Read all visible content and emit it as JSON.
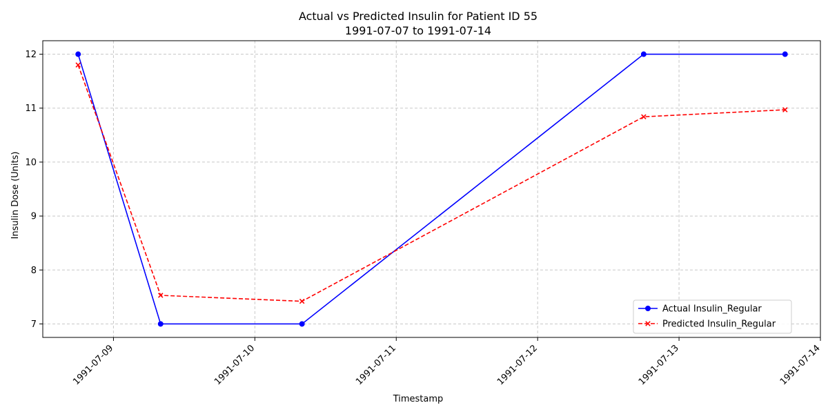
{
  "chart_data": {
    "type": "line",
    "title": "Actual vs Predicted Insulin for Patient ID 55",
    "subtitle": "1991-07-07 to 1991-07-14",
    "xlabel": "Timestamp",
    "ylabel": "Insulin Dose (Units)",
    "xlim": [
      "1991-07-08 12:00",
      "1991-07-14 00:00"
    ],
    "ylim": [
      6.75,
      12.25
    ],
    "x_ticks": [
      "1991-07-09",
      "1991-07-10",
      "1991-07-11",
      "1991-07-12",
      "1991-07-13",
      "1991-07-14"
    ],
    "y_ticks": [
      7,
      8,
      9,
      10,
      11,
      12
    ],
    "grid": true,
    "legend_position": "bottom-right",
    "series": [
      {
        "name": "Actual Insulin_Regular",
        "color": "#0000ff",
        "line_style": "solid",
        "marker": "circle",
        "points": [
          {
            "x": "1991-07-08 18:00",
            "y": 12
          },
          {
            "x": "1991-07-09 08:00",
            "y": 7
          },
          {
            "x": "1991-07-10 08:00",
            "y": 7
          },
          {
            "x": "1991-07-12 18:00",
            "y": 12
          },
          {
            "x": "1991-07-13 18:00",
            "y": 12
          }
        ]
      },
      {
        "name": "Predicted Insulin_Regular",
        "color": "#ff0000",
        "line_style": "dashed",
        "marker": "x",
        "points": [
          {
            "x": "1991-07-08 18:00",
            "y": 11.8
          },
          {
            "x": "1991-07-09 08:00",
            "y": 7.53
          },
          {
            "x": "1991-07-10 08:00",
            "y": 7.42
          },
          {
            "x": "1991-07-12 18:00",
            "y": 10.84
          },
          {
            "x": "1991-07-13 18:00",
            "y": 10.97
          }
        ]
      }
    ]
  }
}
